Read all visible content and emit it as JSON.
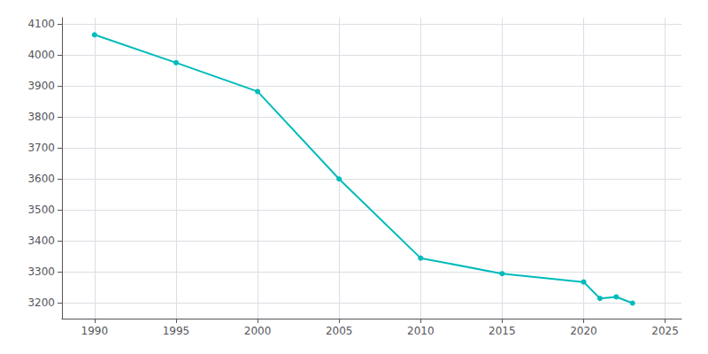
{
  "chart_data": {
    "type": "line",
    "x": [
      1990,
      1995,
      2000,
      2005,
      2010,
      2015,
      2020,
      2021,
      2022,
      2023
    ],
    "values": [
      4065,
      3975,
      3882,
      3600,
      3345,
      3295,
      3268,
      3215,
      3220,
      3200
    ],
    "color": "#00BBBB",
    "marker": "circle",
    "xlim": [
      1988,
      2026
    ],
    "ylim": [
      3150,
      4120
    ],
    "xticks": [
      1990,
      1995,
      2000,
      2005,
      2010,
      2015,
      2020,
      2025
    ],
    "yticks": [
      3200,
      3300,
      3400,
      3500,
      3600,
      3700,
      3800,
      3900,
      4000,
      4100
    ],
    "grid": true
  }
}
